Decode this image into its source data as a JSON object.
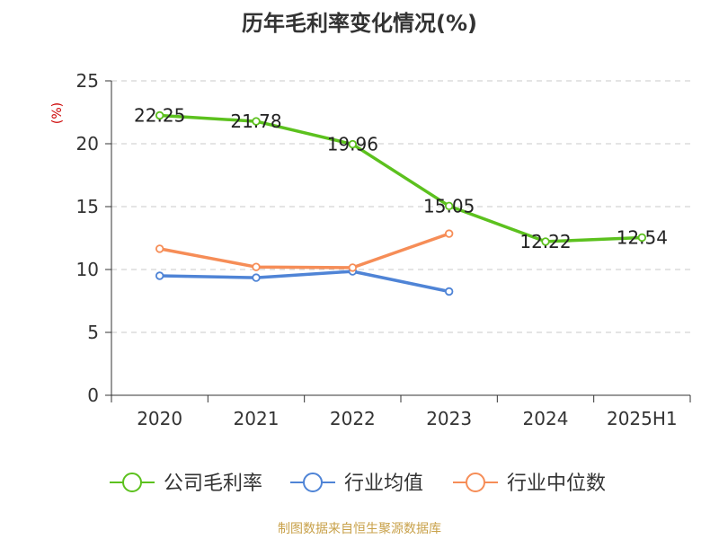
{
  "chart_data": {
    "type": "line",
    "title": "历年毛利率变化情况(%)",
    "ylabel": "(%)",
    "xlabel": "",
    "categories": [
      "2020",
      "2021",
      "2022",
      "2023",
      "2024",
      "2025H1"
    ],
    "ylim": [
      0,
      25
    ],
    "yticks": [
      0,
      5,
      10,
      15,
      20,
      25
    ],
    "grid": true,
    "legend_position": "bottom",
    "series": [
      {
        "name": "公司毛利率",
        "color": "#5cc11e",
        "values": [
          22.25,
          21.78,
          19.96,
          15.05,
          12.22,
          12.54
        ],
        "labels": [
          "22.25",
          "21.78",
          "19.96",
          "15.05",
          "12.22",
          "12.54"
        ]
      },
      {
        "name": "行业均值",
        "color": "#4f84d6",
        "values": [
          9.5,
          9.35,
          9.85,
          8.25,
          null,
          null
        ]
      },
      {
        "name": "行业中位数",
        "color": "#f68d57",
        "values": [
          11.65,
          10.2,
          10.15,
          12.85,
          null,
          null
        ]
      }
    ]
  },
  "footer": {
    "source": "制图数据来自恒生聚源数据库"
  }
}
